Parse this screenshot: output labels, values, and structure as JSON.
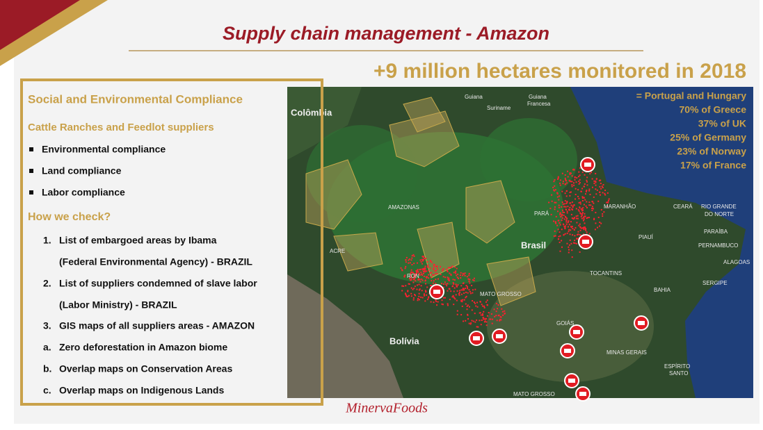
{
  "header": {
    "title": "Supply chain management - Amazon"
  },
  "headline": "+9 million hectares monitored in 2018",
  "left_panel": {
    "heading": "Social and Environmental Compliance",
    "subheading": "Cattle Ranches and Feedlot suppliers",
    "bullets": [
      "Environmental compliance",
      "Land compliance",
      "Labor compliance"
    ],
    "check_heading": "How we check?",
    "steps": [
      {
        "marker": "1.",
        "lines": [
          "List of embargoed areas by Ibama",
          "(Federal Environmental Agency) - BRAZIL"
        ]
      },
      {
        "marker": "2.",
        "lines": [
          "List of suppliers condemned of slave labor",
          "(Labor Ministry) - BRAZIL"
        ]
      },
      {
        "marker": "3.",
        "lines": [
          "GIS maps of all suppliers areas - AMAZON"
        ]
      },
      {
        "marker": "a.",
        "lines": [
          "Zero deforestation in Amazon biome"
        ]
      },
      {
        "marker": "b.",
        "lines": [
          "Overlap maps on Conservation Areas"
        ]
      },
      {
        "marker": "c.",
        "lines": [
          "Overlap maps on Indigenous Lands"
        ]
      }
    ]
  },
  "map": {
    "comparisons": [
      "= Portugal and Hungary",
      "70% of Greece",
      "37% of UK",
      "25% of Germany",
      "23% of Norway",
      "17% of France"
    ],
    "labels": [
      "Colômbia",
      "Guiana",
      "Suriname",
      "Guiana",
      "Francesa",
      "AMAZONAS",
      "PARÁ",
      "MARANHÃO",
      "CEARÁ",
      "RIO GRANDE",
      "DO NORTE",
      "PARAÍBA",
      "PERNAMBUCO",
      "PIAUÍ",
      "ACRE",
      "Brasil",
      "ALAGOAS",
      "TOCANTINS",
      "SERGIPE",
      "RON",
      "MATO GROSSO",
      "BAHIA",
      "GOIÁS",
      "Bolívia",
      "MINAS GERAIS",
      "ESPÍRITO",
      "SANTO",
      "MATO GROSSO"
    ]
  },
  "footer": {
    "logo": "MinervaFoods"
  }
}
